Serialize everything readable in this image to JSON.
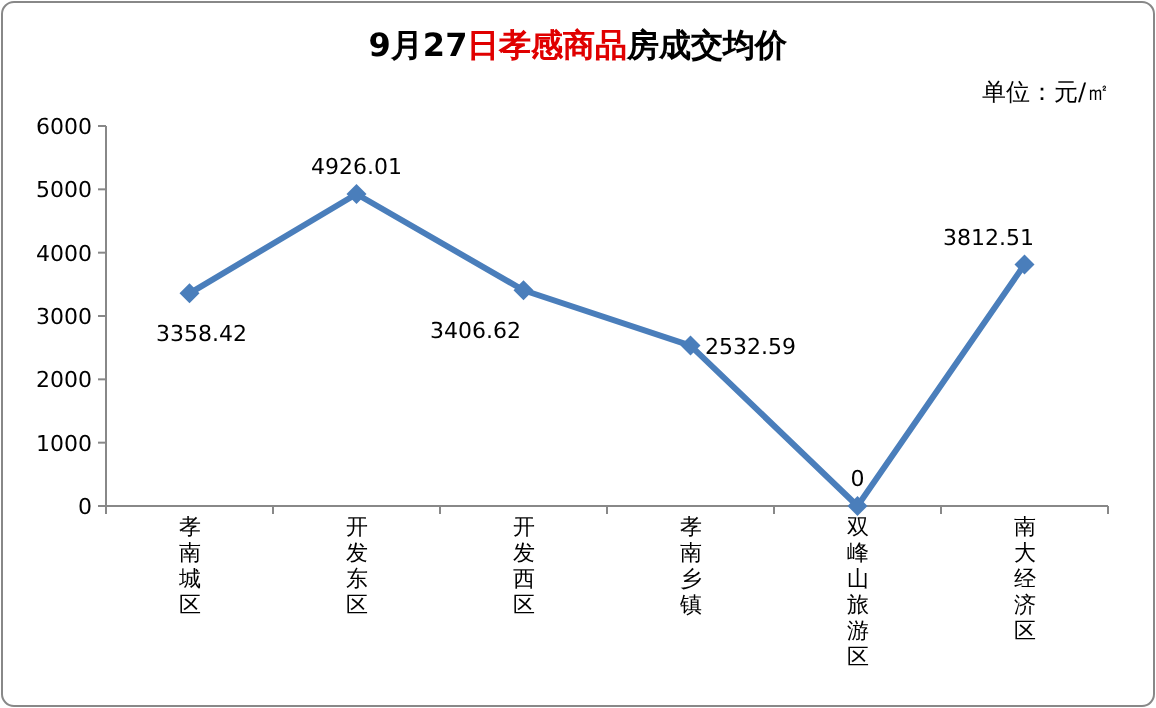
{
  "chart_data": {
    "type": "line",
    "title": "9月27日孝感商品房成交均价",
    "annotations": [
      "单位：元/㎡"
    ],
    "categories": [
      "孝南城区",
      "开发东区",
      "开发西区",
      "孝南乡镇",
      "双峰山旅游区",
      "南大经济区"
    ],
    "series": [
      {
        "color": "#4a7ebb",
        "values": [
          3358.42,
          4926.01,
          3406.62,
          2532.59,
          0,
          3812.51
        ]
      }
    ],
    "ylim": [
      0,
      6000
    ],
    "yticks": [
      0,
      1000,
      2000,
      3000,
      4000,
      5000,
      6000
    ],
    "data_labels": true,
    "marker": "diamond",
    "line_style": "solid",
    "grid": false
  }
}
